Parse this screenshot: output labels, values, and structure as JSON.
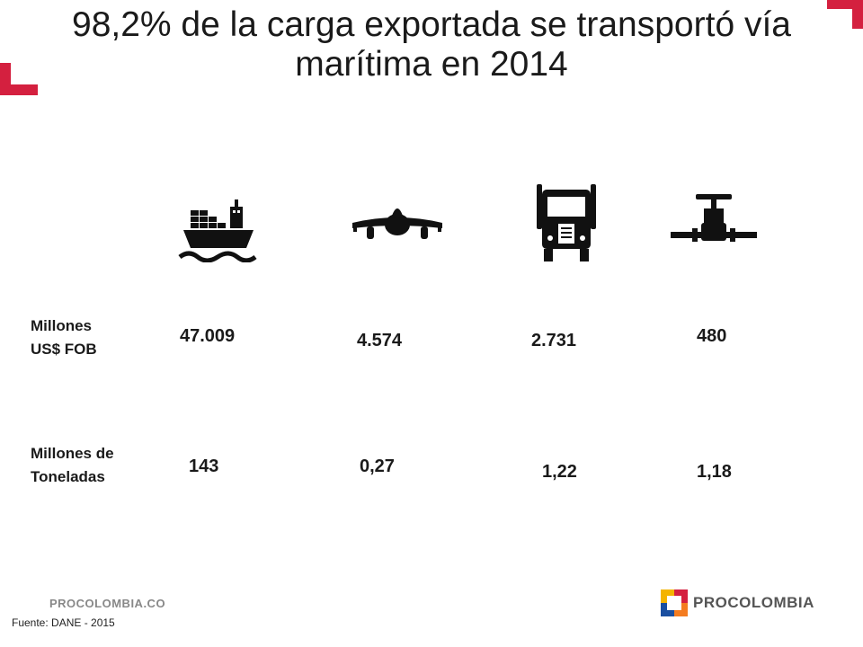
{
  "slide": {
    "title": "98,2% de la carga exportada se transportó vía marítima en 2014",
    "accent_color": "#d4203f"
  },
  "modes": [
    {
      "icon": "cargo-ship-icon",
      "fob": "47.009",
      "tons": "143"
    },
    {
      "icon": "airplane-icon",
      "fob": "4.574",
      "tons": "0,27"
    },
    {
      "icon": "truck-icon",
      "fob": "2.731",
      "tons": "1,22"
    },
    {
      "icon": "pipeline-valve-icon",
      "fob": "480",
      "tons": "1,18"
    }
  ],
  "labels": {
    "fob_line1": "Millones",
    "fob_line2": "US$ FOB",
    "tons_line1": "Millones de",
    "tons_line2": "Toneladas"
  },
  "footer": {
    "url": "PROCOLOMBIA.CO",
    "source": "Fuente: DANE - 2015",
    "brand": "PROCOLOMBIA"
  }
}
